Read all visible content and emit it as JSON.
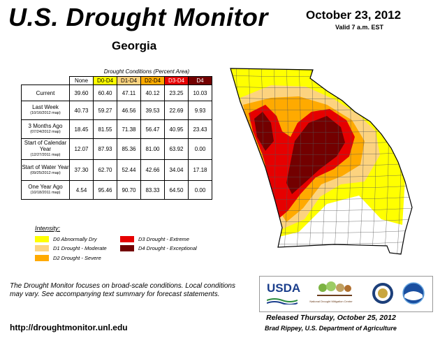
{
  "header": {
    "title": "U.S. Drought Monitor",
    "state": "Georgia",
    "date": "October 23, 2012",
    "valid_time": "Valid 7 a.m. EST"
  },
  "table": {
    "caption": "Drought Conditions (Percent Area)",
    "columns": [
      "None",
      "D0-D4",
      "D1-D4",
      "D2-D4",
      "D3-D4",
      "D4"
    ],
    "column_colors": [
      "#ffffff",
      "#ffff00",
      "#fcd37f",
      "#ffaa00",
      "#e60000",
      "#730000"
    ],
    "rows": [
      {
        "label": "Current",
        "sub": "",
        "values": [
          "39.60",
          "60.40",
          "47.11",
          "40.12",
          "23.25",
          "10.03"
        ]
      },
      {
        "label": "Last Week",
        "sub": "(10/16/2012 map)",
        "values": [
          "40.73",
          "59.27",
          "46.56",
          "39.53",
          "22.69",
          "9.93"
        ]
      },
      {
        "label": "3 Months Ago",
        "sub": "(07/24/2012 map)",
        "values": [
          "18.45",
          "81.55",
          "71.38",
          "56.47",
          "40.95",
          "23.43"
        ]
      },
      {
        "label": "Start of Calendar Year",
        "sub": "(12/27/2011 map)",
        "values": [
          "12.07",
          "87.93",
          "85.36",
          "81.00",
          "63.92",
          "0.00"
        ]
      },
      {
        "label": "Start of Water Year",
        "sub": "(09/25/2012 map)",
        "values": [
          "37.30",
          "62.70",
          "52.44",
          "42.66",
          "34.04",
          "17.18"
        ]
      },
      {
        "label": "One Year Ago",
        "sub": "(10/18/2011 map)",
        "values": [
          "4.54",
          "95.46",
          "90.70",
          "83.33",
          "64.50",
          "0.00"
        ]
      }
    ]
  },
  "legend": {
    "title": "Intensity:",
    "items": [
      {
        "label": "D0 Abnormally Dry",
        "color": "#ffff00"
      },
      {
        "label": "D1 Drought - Moderate",
        "color": "#fcd37f"
      },
      {
        "label": "D2 Drought - Severe",
        "color": "#ffaa00"
      },
      {
        "label": "D3 Drought - Extreme",
        "color": "#e60000"
      },
      {
        "label": "D4 Drought - Exceptional",
        "color": "#730000"
      }
    ]
  },
  "footer": {
    "note": "The Drought Monitor focuses on broad-scale conditions. Local conditions may vary. See accompanying text summary for forecast statements.",
    "url": "http://droughtmonitor.unl.edu",
    "released": "Released Thursday, October 25, 2012",
    "author": "Brad Rippey, U.S. Department of Agriculture"
  },
  "logos": {
    "usda": "USDA",
    "ndmc": "National Drought Mitigation Center"
  }
}
